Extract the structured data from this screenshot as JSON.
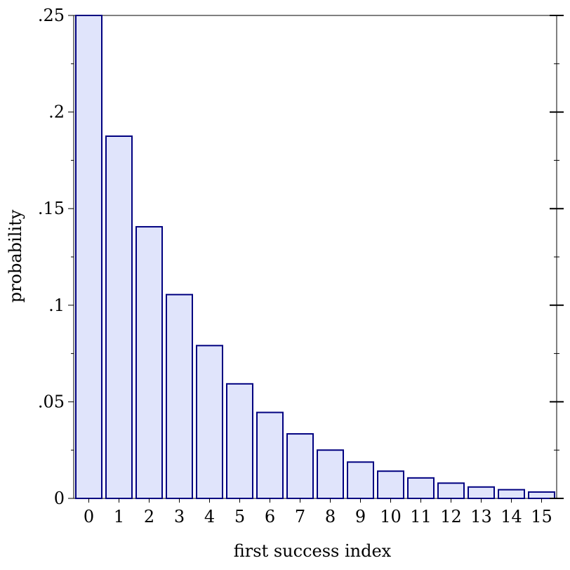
{
  "chart_data": {
    "type": "bar",
    "title": "",
    "xlabel": "first success index",
    "ylabel": "probability",
    "categories": [
      "0",
      "1",
      "2",
      "3",
      "4",
      "5",
      "6",
      "7",
      "8",
      "9",
      "10",
      "11",
      "12",
      "13",
      "14",
      "15"
    ],
    "values": [
      0.25,
      0.1875,
      0.1406,
      0.1055,
      0.0791,
      0.0593,
      0.0445,
      0.0334,
      0.025,
      0.0188,
      0.0141,
      0.0106,
      0.0079,
      0.0059,
      0.0045,
      0.0033
    ],
    "ylim": [
      0,
      0.25
    ],
    "y_ticks": [
      0,
      0.05,
      0.1,
      0.15,
      0.2,
      0.25
    ],
    "y_tick_labels": [
      "0",
      ".05",
      ".1",
      ".15",
      ".2",
      ".25"
    ],
    "grid": false,
    "bar_fill": "#e0e4fb",
    "bar_stroke": "#000080"
  }
}
